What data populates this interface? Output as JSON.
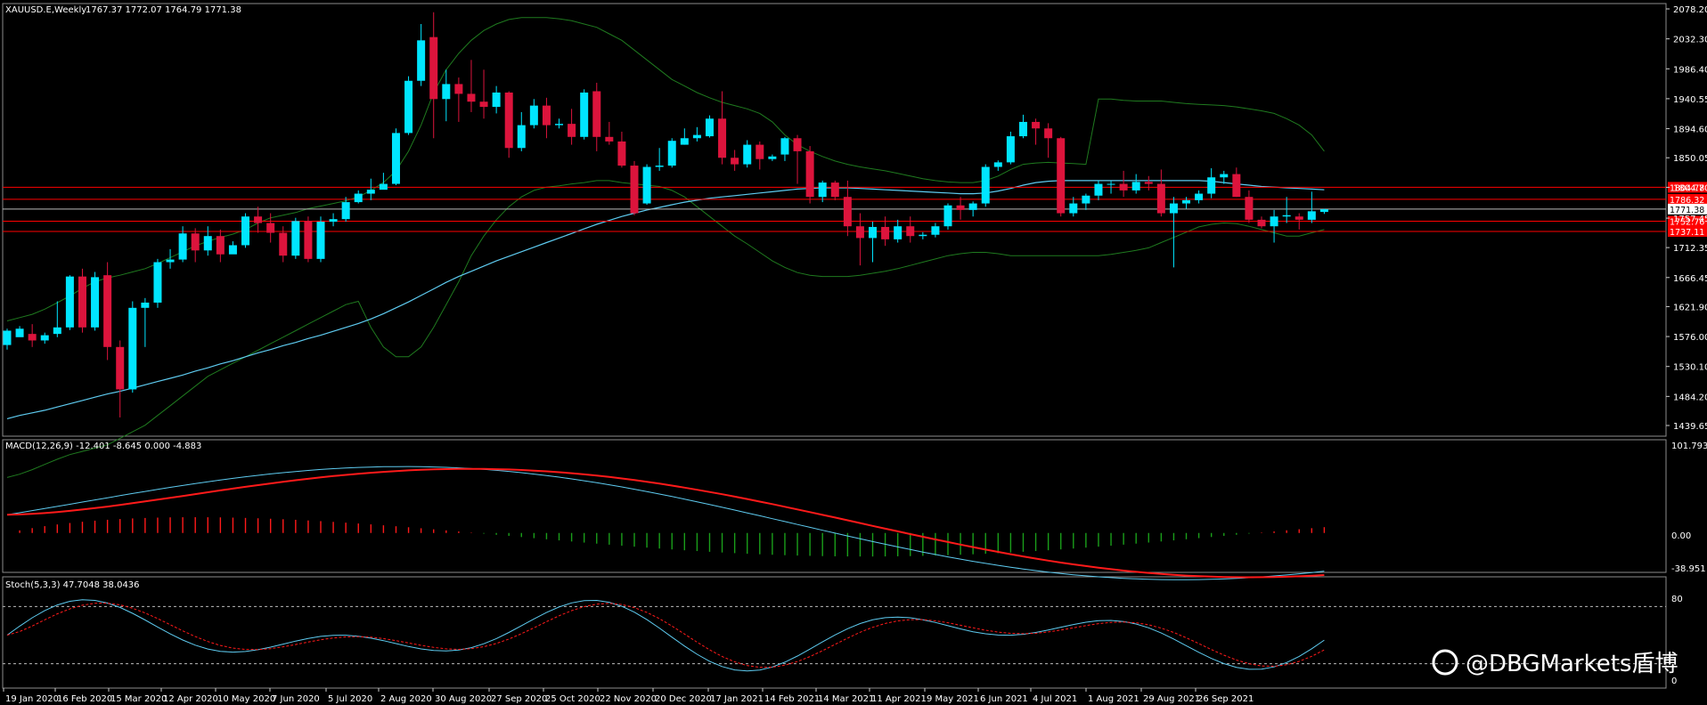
{
  "header": {
    "symbol": "XAUUSD.E,Weekly",
    "ohlc": "1767.37 1772.07 1764.79 1771.38"
  },
  "macd": {
    "label": "MACD(12,26,9) -12.401 -8.645 0.000 -4.883",
    "ticks": [
      "101.793",
      "0.00",
      "-38.951"
    ]
  },
  "stoch": {
    "label": "Stoch(5,3,3) 47.7048 38.0436",
    "ticks": [
      "80",
      "0"
    ]
  },
  "watermark": "@DBGMarkets盾博",
  "colors": {
    "bull": "#00e5ff",
    "bear": "#dc143c",
    "band": "#1f7a1f",
    "ma": "#5ecbf0",
    "macd_signal": "#ff1a1a",
    "hist_pos": "#ff1a1a",
    "hist_neg": "#1a9e1a",
    "level": "#ff0000",
    "grid": "#aaaaaa"
  },
  "chart_data": {
    "type": "candlestick",
    "price_ticks": [
      "2078.20",
      "2032.30",
      "1986.40",
      "1940.55",
      "1894.60",
      "1850.05",
      "1804.70",
      "1757.45",
      "1712.35",
      "1666.45",
      "1621.90",
      "1576.00",
      "1530.10",
      "1484.20",
      "1439.65"
    ],
    "x_labels": [
      "19 Jan 2020",
      "16 Feb 2020",
      "15 Mar 2020",
      "12 Apr 2020",
      "10 May 2020",
      "7 Jun 2020",
      "5 Jul 2020",
      "2 Aug 2020",
      "30 Aug 2020",
      "27 Sep 2020",
      "25 Oct 2020",
      "22 Nov 2020",
      "20 Dec 2020",
      "17 Jan 2021",
      "14 Feb 2021",
      "14 Mar 2021",
      "11 Apr 2021",
      "9 May 2021",
      "6 Jun 2021",
      "4 Jul 2021",
      "1 Aug 2021",
      "29 Aug 2021",
      "26 Sep 2021"
    ],
    "level_labels": [
      "1804.78",
      "1786.32",
      "1771.38",
      "1752.76",
      "1737.11"
    ],
    "levels": [
      1804.78,
      1786.32,
      1771.38,
      1752.76,
      1737.11
    ],
    "current_price": 1771.38,
    "candles": [
      [
        1563,
        1585,
        1556,
        1588
      ],
      [
        1575,
        1588,
        1580,
        1592
      ],
      [
        1580,
        1570,
        1560,
        1595
      ],
      [
        1570,
        1578,
        1565,
        1582
      ],
      [
        1580,
        1590,
        1575,
        1630
      ],
      [
        1590,
        1668,
        1586,
        1670
      ],
      [
        1668,
        1590,
        1582,
        1680
      ],
      [
        1590,
        1667,
        1585,
        1675
      ],
      [
        1670,
        1560,
        1540,
        1690
      ],
      [
        1560,
        1495,
        1452,
        1570
      ],
      [
        1495,
        1620,
        1490,
        1630
      ],
      [
        1620,
        1628,
        1560,
        1635
      ],
      [
        1628,
        1690,
        1620,
        1695
      ],
      [
        1690,
        1694,
        1680,
        1710
      ],
      [
        1694,
        1734,
        1690,
        1745
      ],
      [
        1734,
        1708,
        1690,
        1742
      ],
      [
        1708,
        1730,
        1700,
        1745
      ],
      [
        1730,
        1702,
        1690,
        1740
      ],
      [
        1702,
        1716,
        1705,
        1722
      ],
      [
        1716,
        1760,
        1712,
        1765
      ],
      [
        1760,
        1750,
        1735,
        1775
      ],
      [
        1750,
        1735,
        1720,
        1765
      ],
      [
        1735,
        1700,
        1690,
        1745
      ],
      [
        1700,
        1753,
        1695,
        1758
      ],
      [
        1753,
        1695,
        1690,
        1760
      ],
      [
        1695,
        1752,
        1690,
        1760
      ],
      [
        1752,
        1756,
        1745,
        1765
      ],
      [
        1756,
        1782,
        1752,
        1790
      ],
      [
        1782,
        1795,
        1780,
        1800
      ],
      [
        1795,
        1801,
        1785,
        1818
      ],
      [
        1801,
        1810,
        1802,
        1827
      ],
      [
        1810,
        1888,
        1808,
        1895
      ],
      [
        1888,
        1968,
        1885,
        1975
      ],
      [
        1968,
        2030,
        1960,
        2055
      ],
      [
        2035,
        1940,
        1880,
        2073
      ],
      [
        1940,
        1963,
        1906,
        1985
      ],
      [
        1963,
        1948,
        1905,
        1973
      ],
      [
        1948,
        1936,
        1920,
        2000
      ],
      [
        1936,
        1928,
        1910,
        1985
      ],
      [
        1928,
        1950,
        1918,
        1960
      ],
      [
        1950,
        1865,
        1850,
        1952
      ],
      [
        1865,
        1900,
        1860,
        1920
      ],
      [
        1900,
        1930,
        1895,
        1940
      ],
      [
        1930,
        1900,
        1880,
        1942
      ],
      [
        1900,
        1902,
        1895,
        1910
      ],
      [
        1902,
        1882,
        1870,
        1925
      ],
      [
        1882,
        1950,
        1878,
        1955
      ],
      [
        1952,
        1882,
        1860,
        1965
      ],
      [
        1882,
        1875,
        1870,
        1905
      ],
      [
        1875,
        1838,
        1835,
        1890
      ],
      [
        1838,
        1765,
        1762,
        1845
      ],
      [
        1780,
        1836,
        1778,
        1840
      ],
      [
        1836,
        1838,
        1830,
        1865
      ],
      [
        1838,
        1876,
        1835,
        1880
      ],
      [
        1870,
        1880,
        1870,
        1895
      ],
      [
        1880,
        1885,
        1875,
        1897
      ],
      [
        1883,
        1910,
        1881,
        1915
      ],
      [
        1910,
        1850,
        1840,
        1952
      ],
      [
        1850,
        1840,
        1830,
        1862
      ],
      [
        1840,
        1870,
        1835,
        1877
      ],
      [
        1870,
        1848,
        1832,
        1875
      ],
      [
        1848,
        1852,
        1845,
        1855
      ],
      [
        1855,
        1880,
        1845,
        1882
      ],
      [
        1880,
        1860,
        1810,
        1885
      ],
      [
        1860,
        1790,
        1780,
        1868
      ],
      [
        1790,
        1812,
        1782,
        1815
      ],
      [
        1812,
        1790,
        1785,
        1815
      ],
      [
        1790,
        1745,
        1730,
        1815
      ],
      [
        1745,
        1727,
        1685,
        1765
      ],
      [
        1727,
        1744,
        1690,
        1752
      ],
      [
        1744,
        1725,
        1715,
        1760
      ],
      [
        1725,
        1745,
        1720,
        1755
      ],
      [
        1745,
        1730,
        1720,
        1760
      ],
      [
        1730,
        1732,
        1725,
        1736
      ],
      [
        1732,
        1745,
        1728,
        1750
      ],
      [
        1745,
        1777,
        1740,
        1780
      ],
      [
        1777,
        1770,
        1755,
        1790
      ],
      [
        1770,
        1780,
        1760,
        1783
      ],
      [
        1780,
        1836,
        1775,
        1840
      ],
      [
        1836,
        1843,
        1830,
        1846
      ],
      [
        1843,
        1883,
        1840,
        1890
      ],
      [
        1883,
        1905,
        1880,
        1916
      ],
      [
        1905,
        1895,
        1870,
        1910
      ],
      [
        1895,
        1880,
        1850,
        1903
      ],
      [
        1880,
        1765,
        1760,
        1882
      ],
      [
        1765,
        1780,
        1760,
        1790
      ],
      [
        1780,
        1792,
        1770,
        1795
      ],
      [
        1792,
        1810,
        1785,
        1815
      ],
      [
        1810,
        1810,
        1795,
        1815
      ],
      [
        1810,
        1800,
        1790,
        1830
      ],
      [
        1800,
        1813,
        1795,
        1825
      ],
      [
        1813,
        1810,
        1800,
        1822
      ],
      [
        1810,
        1765,
        1760,
        1832
      ],
      [
        1765,
        1780,
        1682,
        1790
      ],
      [
        1780,
        1785,
        1772,
        1790
      ],
      [
        1785,
        1795,
        1780,
        1800
      ],
      [
        1795,
        1820,
        1788,
        1834
      ],
      [
        1820,
        1825,
        1810,
        1830
      ],
      [
        1825,
        1790,
        1790,
        1835
      ],
      [
        1790,
        1755,
        1750,
        1800
      ],
      [
        1755,
        1745,
        1742,
        1760
      ],
      [
        1745,
        1760,
        1720,
        1770
      ],
      [
        1760,
        1762,
        1750,
        1790
      ],
      [
        1760,
        1755,
        1740,
        1765
      ],
      [
        1755,
        1768,
        1750,
        1798
      ],
      [
        1767,
        1771,
        1764,
        1772
      ]
    ],
    "ma": [
      1450,
      1455,
      1459,
      1463,
      1468,
      1473,
      1478,
      1483,
      1488,
      1492,
      1497,
      1502,
      1507,
      1512,
      1517,
      1523,
      1528,
      1534,
      1539,
      1545,
      1551,
      1556,
      1562,
      1567,
      1573,
      1578,
      1584,
      1590,
      1596,
      1603,
      1611,
      1620,
      1629,
      1639,
      1649,
      1659,
      1668,
      1676,
      1684,
      1692,
      1699,
      1706,
      1713,
      1720,
      1727,
      1734,
      1741,
      1748,
      1754,
      1760,
      1765,
      1770,
      1774,
      1778,
      1782,
      1785,
      1788,
      1790,
      1792,
      1794,
      1796,
      1798,
      1800,
      1802,
      1803,
      1804,
      1804,
      1804,
      1803,
      1802,
      1801,
      1800,
      1799,
      1798,
      1797,
      1796,
      1795,
      1795,
      1796,
      1799,
      1803,
      1808,
      1812,
      1814,
      1815,
      1815,
      1815,
      1815,
      1815,
      1815,
      1815,
      1815,
      1815,
      1815,
      1815,
      1815,
      1814,
      1812,
      1810,
      1808,
      1806,
      1805,
      1804,
      1803,
      1802,
      1801
    ],
    "bb_upper": [
      1600,
      1605,
      1610,
      1618,
      1628,
      1638,
      1650,
      1660,
      1666,
      1670,
      1675,
      1680,
      1688,
      1697,
      1706,
      1715,
      1722,
      1728,
      1733,
      1740,
      1750,
      1758,
      1762,
      1766,
      1772,
      1776,
      1780,
      1784,
      1790,
      1800,
      1812,
      1830,
      1860,
      1900,
      1950,
      1985,
      2010,
      2030,
      2045,
      2055,
      2062,
      2065,
      2065,
      2065,
      2063,
      2060,
      2055,
      2050,
      2040,
      2030,
      2015,
      2000,
      1985,
      1970,
      1960,
      1950,
      1942,
      1935,
      1930,
      1925,
      1918,
      1905,
      1885,
      1870,
      1860,
      1852,
      1845,
      1840,
      1836,
      1833,
      1830,
      1826,
      1822,
      1818,
      1815,
      1813,
      1812,
      1812,
      1815,
      1822,
      1832,
      1840,
      1842,
      1843,
      1842,
      1841,
      1840,
      1940,
      1940,
      1938,
      1937,
      1937,
      1937,
      1935,
      1933,
      1932,
      1931,
      1930,
      1928,
      1925,
      1922,
      1918,
      1910,
      1900,
      1885,
      1860
    ],
    "bb_lower": [
      1360,
      1365,
      1372,
      1380,
      1388,
      1395,
      1400,
      1405,
      1410,
      1420,
      1430,
      1440,
      1455,
      1470,
      1485,
      1500,
      1515,
      1525,
      1535,
      1545,
      1555,
      1565,
      1575,
      1585,
      1595,
      1605,
      1615,
      1625,
      1630,
      1590,
      1560,
      1545,
      1545,
      1560,
      1590,
      1625,
      1660,
      1700,
      1730,
      1755,
      1775,
      1790,
      1800,
      1805,
      1807,
      1810,
      1812,
      1815,
      1815,
      1812,
      1810,
      1808,
      1806,
      1800,
      1790,
      1775,
      1760,
      1745,
      1730,
      1718,
      1705,
      1692,
      1682,
      1674,
      1670,
      1668,
      1668,
      1668,
      1670,
      1673,
      1676,
      1680,
      1685,
      1690,
      1695,
      1700,
      1703,
      1705,
      1705,
      1703,
      1700,
      1700,
      1700,
      1700,
      1700,
      1700,
      1700,
      1700,
      1702,
      1705,
      1708,
      1712,
      1720,
      1728,
      1736,
      1744,
      1748,
      1750,
      1749,
      1745,
      1740,
      1735,
      1730,
      1730,
      1735,
      1740
    ]
  }
}
